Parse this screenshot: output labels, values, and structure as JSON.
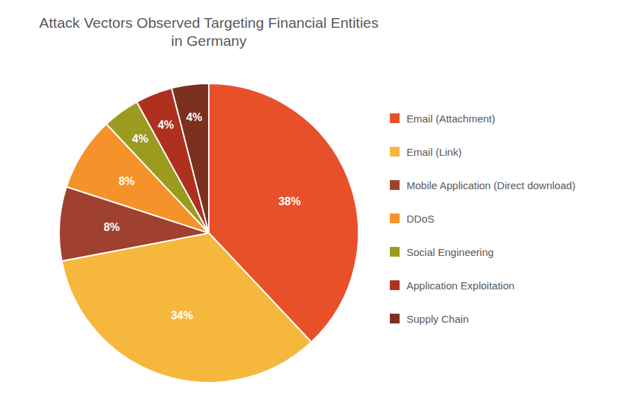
{
  "chart_data": {
    "type": "pie",
    "title": "Attack Vectors Observed Targeting Financial Entities\nin Germany",
    "categories": [
      "Email (Attachment)",
      "Email (Link)",
      "Mobile Application (Direct download)",
      "DDoS",
      "Social Engineering",
      "Application Exploitation",
      "Supply Chain"
    ],
    "values": [
      38,
      34,
      8,
      8,
      4,
      4,
      4
    ],
    "value_labels": [
      "38%",
      "34%",
      "8%",
      "8%",
      "4%",
      "4%",
      "4%"
    ],
    "colors": [
      "#E8502A",
      "#F5B83D",
      "#A04030",
      "#F5922A",
      "#9B9B20",
      "#B03020",
      "#7B3020"
    ],
    "data_labels": true,
    "legend": "right"
  }
}
